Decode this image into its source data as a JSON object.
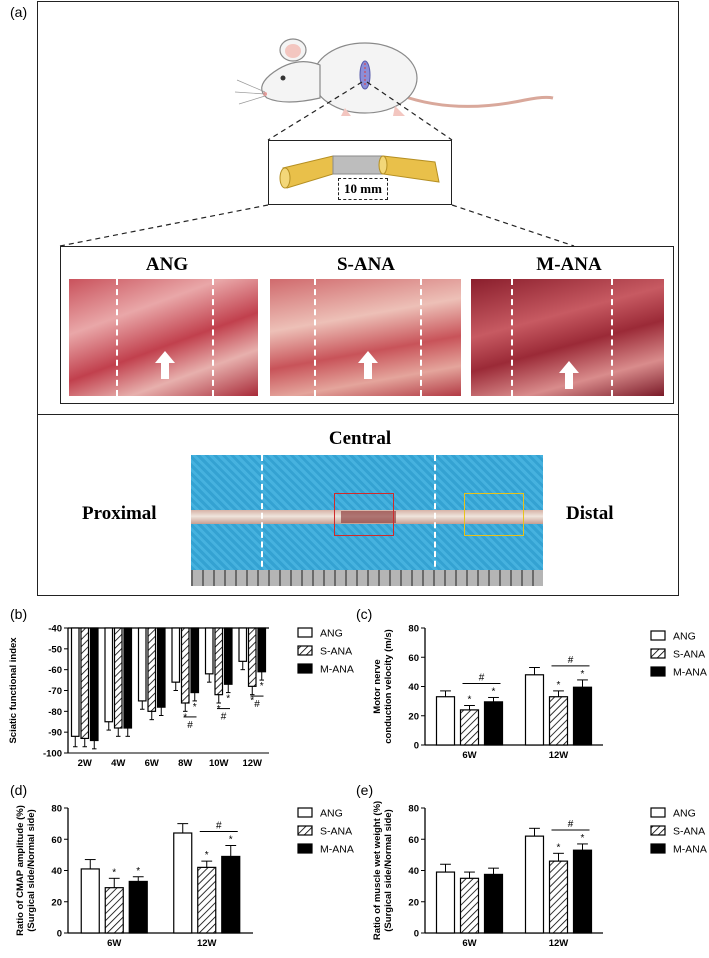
{
  "figure": {
    "panel_a_label": "(a)",
    "panel_b_label": "(b)",
    "panel_c_label": "(c)",
    "panel_d_label": "(d)",
    "panel_e_label": "(e)",
    "graft_length_label": "10 mm",
    "groups": [
      "ANG",
      "S-ANA",
      "M-ANA"
    ],
    "central_label": "Central",
    "proximal_label": "Proximal",
    "distal_label": "Distal",
    "colors": {
      "tissue_red": "#b8323c",
      "nerve_yellow": "#e9c04a",
      "gap_gray": "#bdbdbd",
      "drape_blue": "#3aa9d6",
      "red_box": "#d12a2a",
      "yellow_box": "#e8c21a"
    }
  },
  "legend": {
    "items": [
      {
        "name": "ANG",
        "fill": "open"
      },
      {
        "name": "S-ANA",
        "fill": "hatched"
      },
      {
        "name": "M-ANA",
        "fill": "solid"
      }
    ]
  },
  "chart_data": [
    {
      "panel": "(b)",
      "type": "bar",
      "ylabel": "Sciatic functional index",
      "categories": [
        "2W",
        "4W",
        "6W",
        "8W",
        "10W",
        "12W"
      ],
      "ylim": [
        -100,
        -40
      ],
      "yticks": [
        "-40",
        "-50",
        "-60",
        "-70",
        "-80",
        "-90",
        "-100"
      ],
      "series": [
        {
          "name": "ANG",
          "values": [
            -92,
            -85,
            -75,
            -66,
            -62,
            -56
          ],
          "errors": [
            5,
            4,
            4,
            4,
            4,
            4
          ]
        },
        {
          "name": "S-ANA",
          "values": [
            -93,
            -88,
            -80,
            -76,
            -72,
            -68
          ],
          "errors": [
            4,
            4,
            4,
            4,
            4,
            4
          ]
        },
        {
          "name": "M-ANA",
          "values": [
            -94,
            -88,
            -78,
            -71,
            -67,
            -61
          ],
          "errors": [
            4,
            4,
            4,
            4,
            4,
            4
          ]
        }
      ],
      "annotations": {
        "star": "*",
        "hash": "#"
      }
    },
    {
      "panel": "(c)",
      "type": "bar",
      "ylabel": "Motor nerve conduction velocity (m/s)",
      "ylabel_lines": [
        "Motor nerve",
        "conduction velocity (m/s)"
      ],
      "categories": [
        "6W",
        "12W"
      ],
      "ylim": [
        0,
        80
      ],
      "yticks": [
        "0",
        "20",
        "40",
        "60",
        "80"
      ],
      "series": [
        {
          "name": "ANG",
          "values": [
            33,
            48
          ],
          "errors": [
            4,
            5
          ]
        },
        {
          "name": "S-ANA",
          "values": [
            24,
            33
          ],
          "errors": [
            3,
            4
          ]
        },
        {
          "name": "M-ANA",
          "values": [
            29.5,
            39.5
          ],
          "errors": [
            3,
            5
          ]
        }
      ],
      "annotations": {
        "star": "*",
        "hash": "#"
      }
    },
    {
      "panel": "(d)",
      "type": "bar",
      "ylabel": "Ratio of CMAP amplitude (%) (Surgical side/Normal side)",
      "ylabel_lines": [
        "Ratio of CMAP amplitude (%)",
        "(Surgical side/Normal side)"
      ],
      "categories": [
        "6W",
        "12W"
      ],
      "ylim": [
        0,
        80
      ],
      "yticks": [
        "0",
        "20",
        "40",
        "60",
        "80"
      ],
      "series": [
        {
          "name": "ANG",
          "values": [
            41,
            64
          ],
          "errors": [
            6,
            6
          ]
        },
        {
          "name": "S-ANA",
          "values": [
            29,
            42
          ],
          "errors": [
            6,
            4
          ]
        },
        {
          "name": "M-ANA",
          "values": [
            33,
            49
          ],
          "errors": [
            3,
            7
          ]
        }
      ],
      "annotations": {
        "star": "*",
        "hash": "#"
      }
    },
    {
      "panel": "(e)",
      "type": "bar",
      "ylabel": "Ratio of muscle wet weight (%) (Surgical side/Normal side)",
      "ylabel_lines": [
        "Ratio of muscle wet weight (%)",
        "(Surgical side/Normal side)"
      ],
      "categories": [
        "6W",
        "12W"
      ],
      "ylim": [
        0,
        80
      ],
      "yticks": [
        "0",
        "20",
        "40",
        "60",
        "80"
      ],
      "series": [
        {
          "name": "ANG",
          "values": [
            39,
            62
          ],
          "errors": [
            5,
            5
          ]
        },
        {
          "name": "S-ANA",
          "values": [
            35,
            46
          ],
          "errors": [
            4,
            5
          ]
        },
        {
          "name": "M-ANA",
          "values": [
            37.5,
            53
          ],
          "errors": [
            4,
            4
          ]
        }
      ],
      "annotations": {
        "star": "*",
        "hash": "#"
      }
    }
  ]
}
